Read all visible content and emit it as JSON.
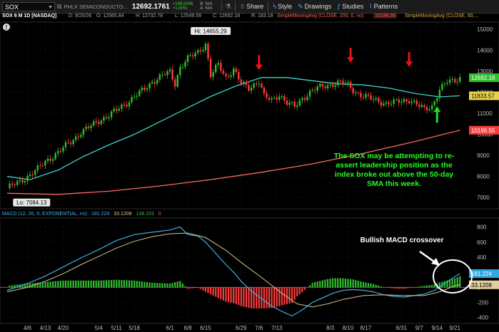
{
  "toolbar": {
    "symbol": "SOX",
    "descriptor": "PHLX SEMICONDUCTO...",
    "last_price": "12692.1761",
    "change_abs": "+199.6396",
    "change_pct": "+1.60%",
    "bid": "B: N/A",
    "ask": "A: N/A",
    "share_label": "Share",
    "style_label": "Style",
    "drawings_label": "Drawings",
    "studies_label": "Studies",
    "patterns_label": "Patterns"
  },
  "study_bar": {
    "title": "SOX 6 M 1D [NASDAQ]",
    "date": "D: 9/25/26",
    "open": "O: 12565.84",
    "high": "H: 12732.78",
    "low": "L: 12549.59",
    "close": "C: 12692.18",
    "range": "R: 183.18",
    "sma200_label": "SimpleMovingAvg (CLOSE, 200, 0, no)",
    "sma200_value": "10196.55",
    "sma50_label": "SimpleMovingAvg (CLOSE, 50,..."
  },
  "macd_legend": {
    "label": "MACD (12, 26, 9, EXPONENTIAL, no)",
    "value": "181.224",
    "avg": "33.1208",
    "diff": "148.103",
    "zero": "0"
  },
  "annotations": {
    "main_text": [
      "The SOX may be attempting to re-",
      "assert leadership position as the",
      "index broke out above the 50-day",
      "SMA this week."
    ],
    "macd_text": "Bullish MACD crossover",
    "hi_label": "Hi: 14655.29",
    "lo_label": "Lo: 7084.13"
  },
  "price_badges": {
    "last": "12692.18",
    "sma50": "11833.57",
    "sma200": "10196.55",
    "macd": "181.224",
    "macd_avg": "33.1208"
  },
  "colors": {
    "up": "#2fbf2f",
    "down": "#ff3b3b",
    "sma50": "#39d6c8",
    "sma200": "#ff6a63",
    "macd": "#3fb0e0",
    "macd_avg": "#d9c38a",
    "annotation": "#22ff22",
    "arrow_red": "#ee1111",
    "arrow_green": "#22dd22"
  },
  "chart_data": [
    {
      "type": "candlestick",
      "title": "SOX 6 M 1D [NASDAQ]",
      "ylim": [
        6500,
        15300
      ],
      "y_ticks": [
        7000,
        8000,
        9000,
        10000,
        11000,
        12000,
        13000,
        14000,
        15000
      ],
      "x_ticks": [
        "4/6",
        "4/13",
        "4/20",
        "5/4",
        "5/11",
        "5/18",
        "6/1",
        "6/8",
        "6/15",
        "6/29",
        "7/6",
        "7/13",
        "8/3",
        "8/10",
        "8/17",
        "8/31",
        "9/7",
        "9/14",
        "9/21"
      ],
      "x_tick_index": [
        8,
        15,
        22,
        36,
        43,
        50,
        64,
        71,
        78,
        92,
        99,
        106,
        127,
        134,
        141,
        155,
        162,
        169,
        176
      ],
      "x_range": [
        0,
        181
      ],
      "close_series": [
        [
          0,
          7450
        ],
        [
          5,
          7750
        ],
        [
          8,
          8000
        ],
        [
          12,
          8350
        ],
        [
          15,
          8700
        ],
        [
          19,
          9050
        ],
        [
          22,
          9350
        ],
        [
          26,
          9750
        ],
        [
          29,
          10100
        ],
        [
          33,
          10400
        ],
        [
          36,
          10650
        ],
        [
          40,
          10900
        ],
        [
          43,
          11150
        ],
        [
          47,
          11500
        ],
        [
          50,
          11800
        ],
        [
          54,
          12150
        ],
        [
          57,
          12500
        ],
        [
          61,
          12800
        ],
        [
          64,
          12950
        ],
        [
          66,
          12400
        ],
        [
          68,
          13200
        ],
        [
          71,
          13600
        ],
        [
          75,
          13900
        ],
        [
          78,
          14300
        ],
        [
          80,
          12800
        ],
        [
          83,
          13300
        ],
        [
          86,
          12700
        ],
        [
          89,
          13100
        ],
        [
          92,
          12400
        ],
        [
          95,
          12200
        ],
        [
          99,
          12550
        ],
        [
          101,
          11800
        ],
        [
          104,
          11600
        ],
        [
          107,
          11900
        ],
        [
          110,
          11500
        ],
        [
          113,
          11300
        ],
        [
          116,
          11700
        ],
        [
          119,
          12000
        ],
        [
          122,
          12200
        ],
        [
          125,
          12300
        ],
        [
          128,
          12400
        ],
        [
          131,
          12450
        ],
        [
          134,
          12350
        ],
        [
          137,
          12000
        ],
        [
          140,
          11800
        ],
        [
          143,
          11700
        ],
        [
          146,
          11600
        ],
        [
          149,
          11450
        ],
        [
          152,
          11500
        ],
        [
          155,
          11600
        ],
        [
          158,
          11650
        ],
        [
          161,
          11400
        ],
        [
          164,
          11200
        ],
        [
          167,
          11350
        ],
        [
          170,
          12100
        ],
        [
          173,
          12500
        ],
        [
          176,
          12600
        ],
        [
          178,
          12692.18
        ]
      ],
      "hi": 14655.29,
      "lo": 7084.13,
      "sma50": [
        [
          0,
          8000
        ],
        [
          9,
          7850
        ],
        [
          20,
          8300
        ],
        [
          30,
          8950
        ],
        [
          40,
          9500
        ],
        [
          50,
          10000
        ],
        [
          60,
          10600
        ],
        [
          70,
          11200
        ],
        [
          80,
          11800
        ],
        [
          90,
          12300
        ],
        [
          100,
          12700
        ],
        [
          110,
          12700
        ],
        [
          120,
          12550
        ],
        [
          130,
          12400
        ],
        [
          140,
          12350
        ],
        [
          150,
          12200
        ],
        [
          160,
          11950
        ],
        [
          170,
          11780
        ],
        [
          178,
          11833.57
        ]
      ],
      "sma200": [
        [
          0,
          7200
        ],
        [
          20,
          7150
        ],
        [
          40,
          7300
        ],
        [
          60,
          7550
        ],
        [
          80,
          7850
        ],
        [
          100,
          8200
        ],
        [
          120,
          8600
        ],
        [
          140,
          9100
        ],
        [
          160,
          9650
        ],
        [
          178,
          10196.55
        ]
      ],
      "annotations": [
        "The SOX may be attempting to re-assert leadership position as the index broke out above the 50-day SMA this week.",
        "Hi: 14655.29",
        "Lo: 7084.13"
      ]
    },
    {
      "type": "macd",
      "title": "MACD (12, 26, 9, EXPONENTIAL, no)",
      "ylim": [
        -470,
        900
      ],
      "y_ticks": [
        800,
        600,
        400,
        200,
        0,
        -200,
        -400
      ],
      "macd": [
        [
          0,
          -40
        ],
        [
          8,
          50
        ],
        [
          15,
          150
        ],
        [
          22,
          270
        ],
        [
          29,
          390
        ],
        [
          36,
          500
        ],
        [
          43,
          620
        ],
        [
          50,
          700
        ],
        [
          57,
          730
        ],
        [
          64,
          760
        ],
        [
          68,
          800
        ],
        [
          71,
          700
        ],
        [
          75,
          680
        ],
        [
          78,
          600
        ],
        [
          82,
          450
        ],
        [
          86,
          300
        ],
        [
          89,
          200
        ],
        [
          92,
          80
        ],
        [
          96,
          -50
        ],
        [
          100,
          -150
        ],
        [
          104,
          -250
        ],
        [
          108,
          -320
        ],
        [
          112,
          -380
        ],
        [
          116,
          -300
        ],
        [
          120,
          -200
        ],
        [
          124,
          -140
        ],
        [
          128,
          -80
        ],
        [
          132,
          -40
        ],
        [
          136,
          -30
        ],
        [
          140,
          -40
        ],
        [
          144,
          -60
        ],
        [
          148,
          -100
        ],
        [
          152,
          -120
        ],
        [
          156,
          -130
        ],
        [
          160,
          -110
        ],
        [
          164,
          -90
        ],
        [
          168,
          -40
        ],
        [
          172,
          50
        ],
        [
          176,
          140
        ],
        [
          178,
          181.224
        ]
      ],
      "signal": [
        [
          0,
          -60
        ],
        [
          8,
          0
        ],
        [
          15,
          80
        ],
        [
          22,
          180
        ],
        [
          29,
          300
        ],
        [
          36,
          410
        ],
        [
          43,
          520
        ],
        [
          50,
          610
        ],
        [
          57,
          670
        ],
        [
          64,
          710
        ],
        [
          71,
          720
        ],
        [
          78,
          660
        ],
        [
          86,
          490
        ],
        [
          92,
          330
        ],
        [
          100,
          130
        ],
        [
          108,
          -80
        ],
        [
          114,
          -220
        ],
        [
          120,
          -260
        ],
        [
          126,
          -220
        ],
        [
          132,
          -160
        ],
        [
          140,
          -110
        ],
        [
          148,
          -100
        ],
        [
          156,
          -110
        ],
        [
          164,
          -110
        ],
        [
          170,
          -60
        ],
        [
          176,
          20
        ],
        [
          178,
          33.1208
        ]
      ],
      "annotations": [
        "Bullish MACD crossover"
      ]
    }
  ]
}
